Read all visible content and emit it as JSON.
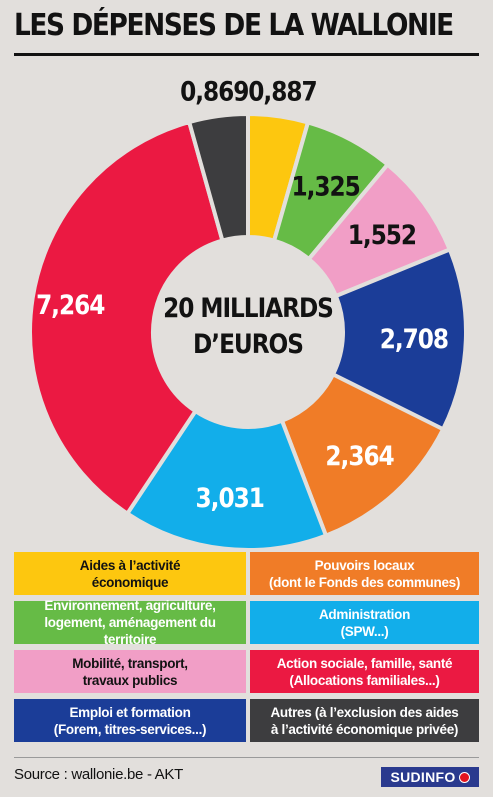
{
  "title": "LES DÉPENSES DE LA WALLONIE",
  "center_label": [
    "20 MILLIARDS",
    "D’EUROS"
  ],
  "chart_data": {
    "type": "pie",
    "title": "LES DÉPENSES DE LA WALLONIE",
    "center_text": "20 MILLIARDS D’EUROS",
    "unit": "milliards d’euros",
    "series": [
      {
        "values": [
          0.887,
          1.325,
          1.552,
          2.708,
          2.364,
          3.031,
          7.264,
          0.869
        ],
        "labels": [
          "0,887",
          "1,325",
          "1,552",
          "2,708",
          "2,364",
          "3,031",
          "7,264",
          "0,869"
        ],
        "categories": [
          "Aides à l’activité économique",
          "Environnement, agriculture, logement, aménagement du territoire",
          "Mobilité, transport, travaux publics",
          "Emploi et formation (Forem, titres-services...)",
          "Pouvoirs locaux (dont le Fonds des communes)",
          "Administration (SPW...)",
          "Action sociale, famille, santé (Allocations familiales...)",
          "Autres (à l’exclusion des aides à l’activité économique privée)"
        ],
        "colors": [
          "#fdc70f",
          "#66bb46",
          "#f19ec6",
          "#1b3d98",
          "#f07c27",
          "#12aeea",
          "#eb1942",
          "#3d3d3f"
        ],
        "label_colors": [
          "#121212",
          "#121212",
          "#121212",
          "#ffffff",
          "#ffffff",
          "#ffffff",
          "#ffffff",
          "#121212"
        ]
      }
    ]
  },
  "legend": [
    {
      "text": "Aides à l’activité\néconomique",
      "bg": "#fdc70f",
      "fg": "#121212"
    },
    {
      "text": "Pouvoirs locaux\n(dont le Fonds des communes)",
      "bg": "#f07c27",
      "fg": "#ffffff"
    },
    {
      "text": "Environnement, agriculture,\nlogement, aménagement du territoire",
      "bg": "#66bb46",
      "fg": "#ffffff"
    },
    {
      "text": "Administration\n(SPW...)",
      "bg": "#12aeea",
      "fg": "#ffffff"
    },
    {
      "text": "Mobilité, transport,\ntravaux publics",
      "bg": "#f19ec6",
      "fg": "#121212"
    },
    {
      "text": "Action sociale, famille, santé\n(Allocations familiales...)",
      "bg": "#eb1942",
      "fg": "#ffffff"
    },
    {
      "text": "Emploi et formation\n(Forem, titres-services...)",
      "bg": "#1b3d98",
      "fg": "#ffffff"
    },
    {
      "text": "Autres (à l’exclusion des aides\nà l’activité économique privée)",
      "bg": "#3d3d3f",
      "fg": "#ffffff"
    }
  ],
  "source": "Source : wallonie.be - AKT",
  "brand": "SUDINFO"
}
